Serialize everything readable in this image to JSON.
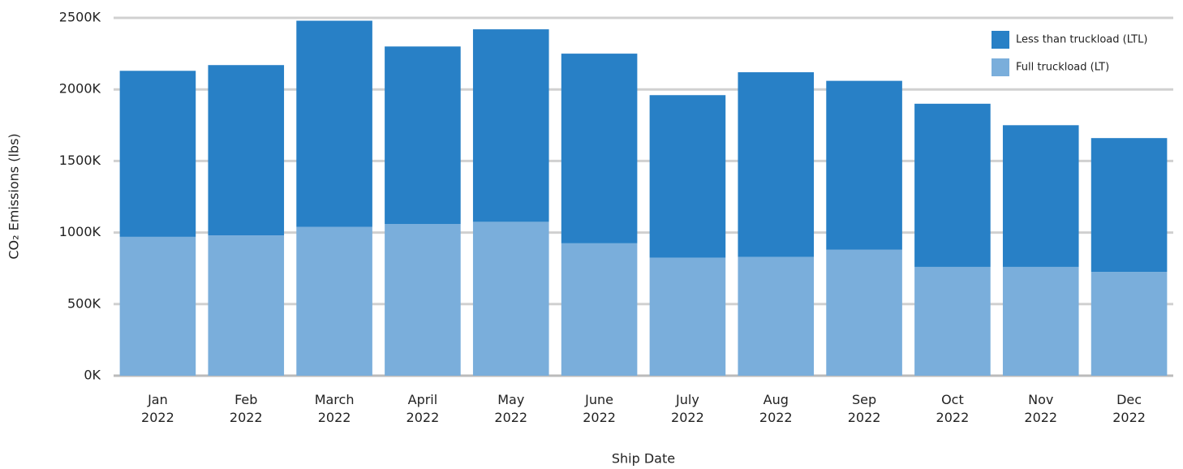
{
  "chart_data": {
    "type": "stacked_bar",
    "y_label": "CO₂ Emissions (lbs)",
    "x_label": "Ship Date",
    "categories": [
      "Jan 2022",
      "Feb 2022",
      "March 2022",
      "April 2022",
      "May 2022",
      "June 2022",
      "July 2022",
      "Aug 2022",
      "Sep 2022",
      "Oct 2022",
      "Nov 2022",
      "Dec 2022"
    ],
    "series": [
      {
        "name": "Full truckload (LT)",
        "color": "#7aaedb",
        "values": [
          970000,
          980000,
          1040000,
          1060000,
          1075000,
          925000,
          825000,
          830000,
          880000,
          760000,
          760000,
          725000
        ]
      },
      {
        "name": "Less than truckload (LTL)",
        "color": "#2880c6",
        "values": [
          1160000,
          1190000,
          1440000,
          1240000,
          1345000,
          1325000,
          1135000,
          1290000,
          1180000,
          1140000,
          990000,
          935000
        ]
      }
    ],
    "ylim": [
      0,
      2500000
    ],
    "yticks": [
      {
        "value": 0,
        "label": "0K"
      },
      {
        "value": 500000,
        "label": "500K"
      },
      {
        "value": 1000000,
        "label": "1000K"
      },
      {
        "value": 1500000,
        "label": "1500K"
      },
      {
        "value": 2000000,
        "label": "2000K"
      },
      {
        "value": 2500000,
        "label": "2500K"
      }
    ],
    "grid": true,
    "legend": "top-right"
  }
}
